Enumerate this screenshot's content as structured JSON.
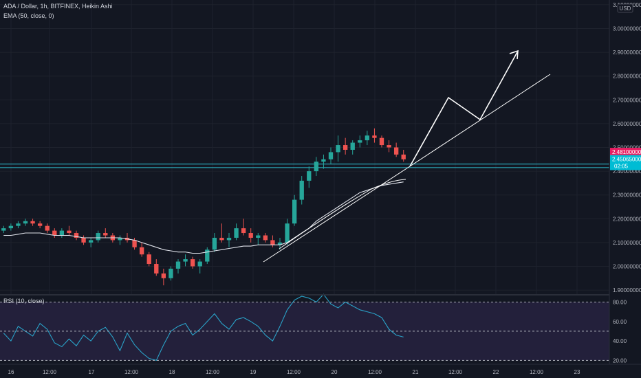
{
  "header": {
    "symbol_line": "ADA / Dollar, 1h, BITFINEX, Heikin Ashi",
    "ema_label": "EMA (50, close, 0)",
    "rsi_label": "RSI (10, close)"
  },
  "currency": "USD",
  "colors": {
    "background": "#131722",
    "grid": "#1e222d",
    "up": "#26a69a",
    "down": "#ef5350",
    "ema": "#e0e3eb",
    "rsi": "#2aa3c9",
    "rsi_band": "#2a2444",
    "hline": "#2fbfd1",
    "drawing": "#ffffff",
    "last_price": "#e91e63",
    "current_price": "#00bcd4"
  },
  "price_axis": {
    "ticks": [
      "3.10000000",
      "3.00000000",
      "2.90000000",
      "2.80000000",
      "2.70000000",
      "2.60000000",
      "2.50000000",
      "2.40000000",
      "2.30000000",
      "2.20000000",
      "2.10000000",
      "2.00000000",
      "1.90000000"
    ],
    "tick_values": [
      3.1,
      3.0,
      2.9,
      2.8,
      2.7,
      2.6,
      2.5,
      2.4,
      2.3,
      2.2,
      2.1,
      2.0,
      1.9
    ],
    "range": [
      1.88,
      3.12
    ]
  },
  "price_tags": {
    "last": {
      "value": 2.481,
      "label": "2.48100000"
    },
    "current": {
      "value": 2.45065,
      "label": "2.45065000",
      "countdown": "02:05"
    }
  },
  "horizontal_levels": [
    2.43,
    2.415
  ],
  "rsi_axis": {
    "ticks": [
      "80.00",
      "60.00",
      "40.00",
      "20.00"
    ],
    "tick_values": [
      80,
      60,
      40,
      20
    ],
    "range": [
      16,
      86
    ]
  },
  "time_axis": {
    "labels": [
      "16",
      "12:00",
      "17",
      "12:00",
      "18",
      "12:00",
      "19",
      "12:00",
      "20",
      "12:00",
      "21",
      "12:00",
      "22",
      "12:00",
      "23"
    ]
  },
  "chart_data": {
    "type": "candlestick",
    "interval": "1h",
    "candles_ohlc_sampled": [
      [
        2.15,
        2.17,
        2.14,
        2.16
      ],
      [
        2.16,
        2.18,
        2.15,
        2.17
      ],
      [
        2.17,
        2.19,
        2.16,
        2.18
      ],
      [
        2.18,
        2.2,
        2.17,
        2.19
      ],
      [
        2.19,
        2.2,
        2.17,
        2.18
      ],
      [
        2.18,
        2.19,
        2.16,
        2.17
      ],
      [
        2.17,
        2.18,
        2.14,
        2.15
      ],
      [
        2.15,
        2.16,
        2.12,
        2.13
      ],
      [
        2.13,
        2.16,
        2.12,
        2.15
      ],
      [
        2.15,
        2.17,
        2.13,
        2.14
      ],
      [
        2.14,
        2.15,
        2.11,
        2.12
      ],
      [
        2.12,
        2.13,
        2.09,
        2.1
      ],
      [
        2.1,
        2.12,
        2.08,
        2.11
      ],
      [
        2.11,
        2.15,
        2.1,
        2.14
      ],
      [
        2.14,
        2.16,
        2.12,
        2.13
      ],
      [
        2.13,
        2.14,
        2.1,
        2.11
      ],
      [
        2.11,
        2.13,
        2.09,
        2.12
      ],
      [
        2.12,
        2.14,
        2.1,
        2.11
      ],
      [
        2.11,
        2.12,
        2.07,
        2.08
      ],
      [
        2.08,
        2.1,
        2.04,
        2.05
      ],
      [
        2.05,
        2.06,
        2.0,
        2.01
      ],
      [
        2.01,
        2.03,
        1.96,
        1.97
      ],
      [
        1.97,
        1.99,
        1.92,
        1.95
      ],
      [
        1.95,
        2.0,
        1.94,
        1.99
      ],
      [
        1.99,
        2.03,
        1.97,
        2.02
      ],
      [
        2.02,
        2.05,
        2.0,
        2.03
      ],
      [
        2.03,
        2.04,
        1.99,
        2.0
      ],
      [
        2.0,
        2.03,
        1.97,
        2.02
      ],
      [
        2.02,
        2.08,
        2.01,
        2.07
      ],
      [
        2.07,
        2.14,
        2.06,
        2.12
      ],
      [
        2.12,
        2.18,
        2.1,
        2.11
      ],
      [
        2.11,
        2.14,
        2.08,
        2.12
      ],
      [
        2.12,
        2.18,
        2.11,
        2.16
      ],
      [
        2.16,
        2.2,
        2.13,
        2.14
      ],
      [
        2.14,
        2.16,
        2.1,
        2.12
      ],
      [
        2.12,
        2.14,
        2.09,
        2.13
      ],
      [
        2.13,
        2.14,
        2.1,
        2.11
      ],
      [
        2.11,
        2.13,
        2.08,
        2.09
      ],
      [
        2.09,
        2.12,
        2.07,
        2.1
      ],
      [
        2.1,
        2.2,
        2.09,
        2.18
      ],
      [
        2.18,
        2.3,
        2.17,
        2.28
      ],
      [
        2.28,
        2.38,
        2.26,
        2.36
      ],
      [
        2.36,
        2.42,
        2.33,
        2.4
      ],
      [
        2.4,
        2.46,
        2.38,
        2.44
      ],
      [
        2.44,
        2.47,
        2.41,
        2.45
      ],
      [
        2.45,
        2.5,
        2.43,
        2.48
      ],
      [
        2.48,
        2.55,
        2.44,
        2.51
      ],
      [
        2.51,
        2.54,
        2.47,
        2.49
      ],
      [
        2.49,
        2.53,
        2.47,
        2.52
      ],
      [
        2.52,
        2.55,
        2.5,
        2.53
      ],
      [
        2.53,
        2.57,
        2.51,
        2.55
      ],
      [
        2.55,
        2.58,
        2.52,
        2.54
      ],
      [
        2.54,
        2.55,
        2.5,
        2.51
      ],
      [
        2.51,
        2.53,
        2.48,
        2.5
      ],
      [
        2.5,
        2.52,
        2.46,
        2.47
      ],
      [
        2.47,
        2.49,
        2.44,
        2.45
      ]
    ],
    "ema_50": [
      2.13,
      2.13,
      2.135,
      2.14,
      2.14,
      2.14,
      2.135,
      2.13,
      2.13,
      2.13,
      2.125,
      2.12,
      2.12,
      2.12,
      2.12,
      2.12,
      2.12,
      2.115,
      2.11,
      2.1,
      2.09,
      2.08,
      2.07,
      2.065,
      2.06,
      2.06,
      2.055,
      2.055,
      2.06,
      2.065,
      2.07,
      2.075,
      2.08,
      2.085,
      2.085,
      2.09,
      2.09,
      2.09,
      2.09,
      2.1,
      2.12,
      2.14,
      2.16,
      2.19,
      2.21,
      2.23,
      2.25,
      2.27,
      2.29,
      2.31,
      2.32,
      2.33,
      2.34,
      2.345,
      2.35,
      2.355
    ],
    "rsi_10": [
      48,
      40,
      55,
      50,
      45,
      58,
      52,
      38,
      34,
      42,
      35,
      46,
      40,
      50,
      54,
      44,
      30,
      48,
      36,
      28,
      22,
      20,
      36,
      50,
      55,
      58,
      46,
      52,
      60,
      68,
      58,
      52,
      62,
      64,
      60,
      55,
      46,
      40,
      55,
      72,
      82,
      86,
      84,
      80,
      88,
      78,
      74,
      80,
      76,
      72,
      70,
      68,
      64,
      52,
      46,
      44
    ],
    "rsi_levels": [
      80,
      50,
      20
    ]
  }
}
